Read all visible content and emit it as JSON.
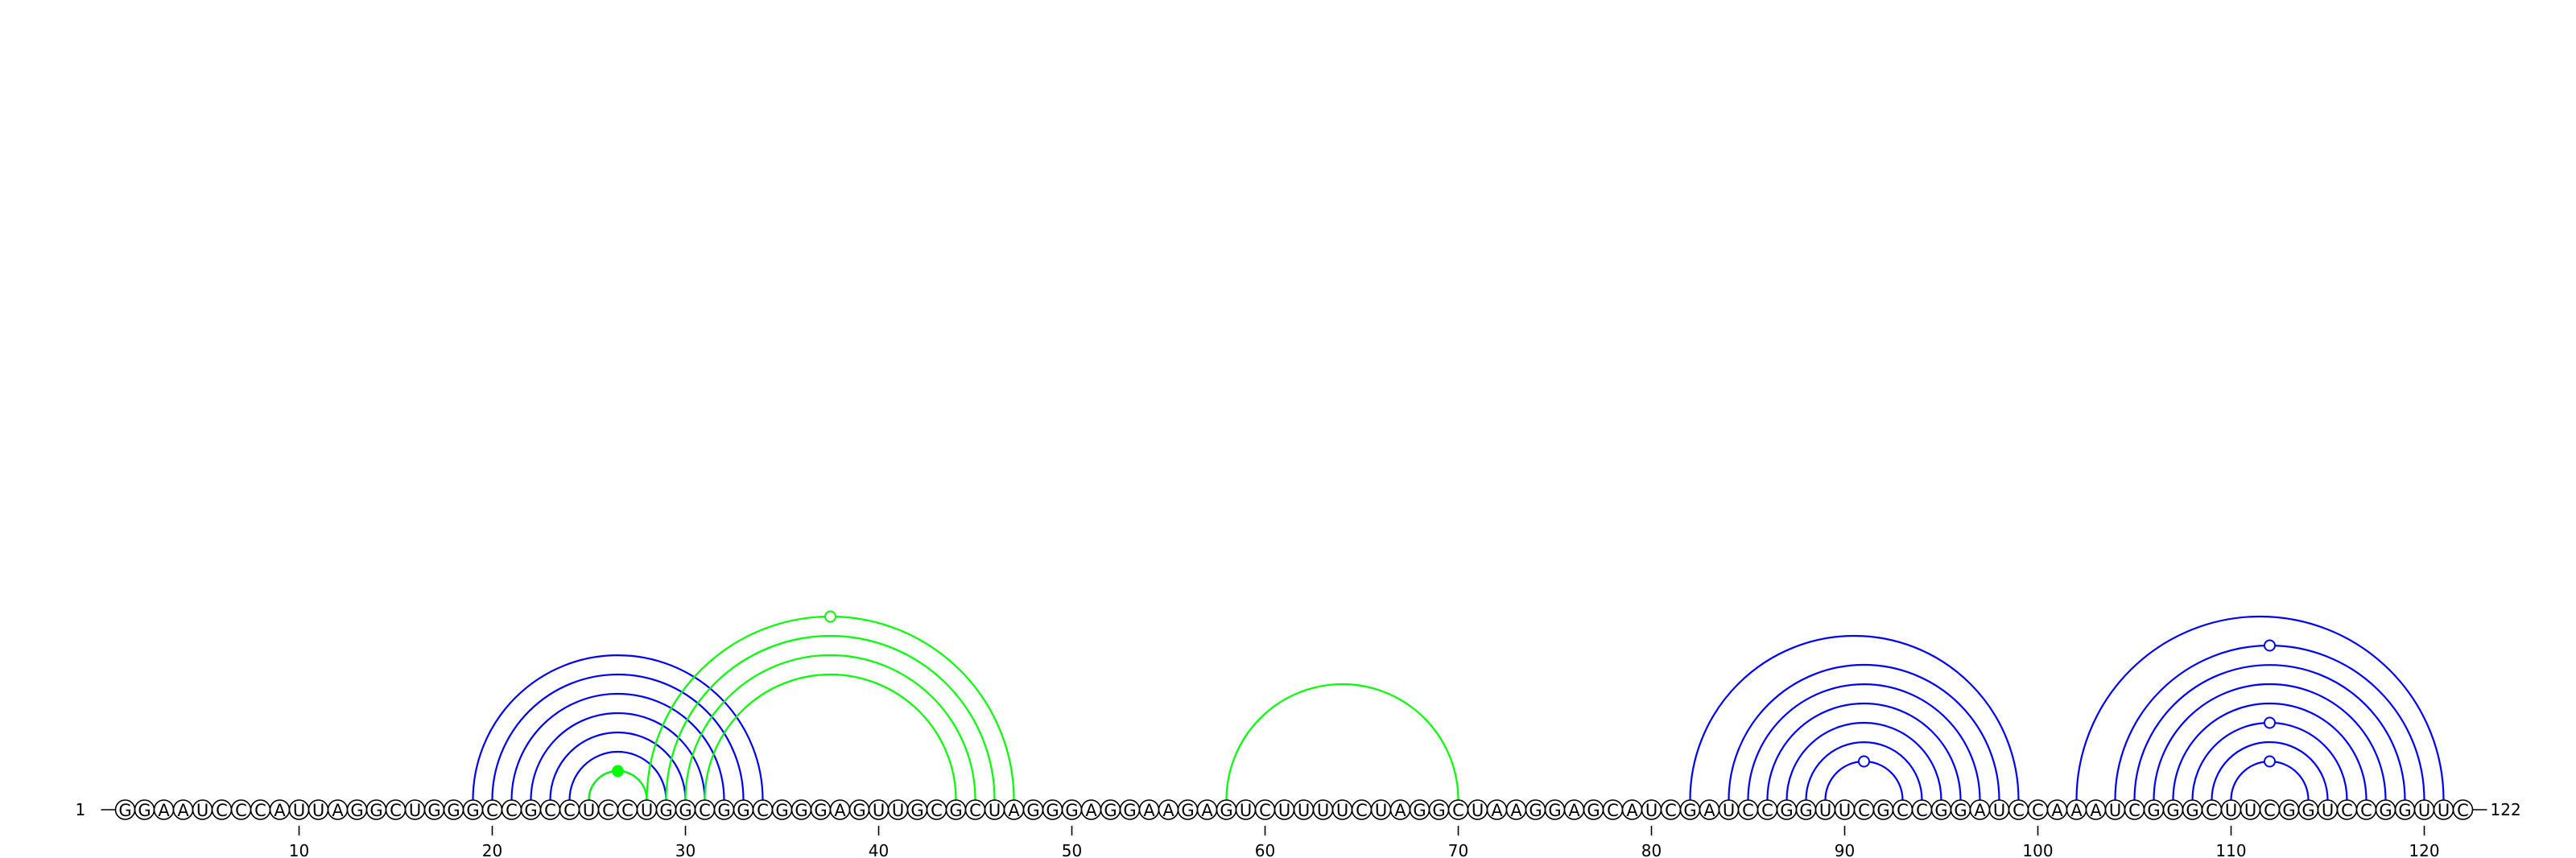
{
  "sequence": "GGAAUCCCAUUAGGCUGGGCCGCCUCCUGGCGGCGGGAGUUGCGCUAGGGAGGAAGAGUCUUUUCUAGGCUAAGGAGCAUCGAUCCGGUUCGCCGGAUCCAAAUCGGGCUUCGGUCCGGUUC",
  "start_label": "1",
  "end_label": "122",
  "ticks": [
    10,
    20,
    30,
    40,
    50,
    60,
    70,
    80,
    90,
    100,
    110,
    120
  ],
  "colors": {
    "primary": "#0000ff",
    "alternative": "#00ff00",
    "outline": "#000000",
    "background": "#ffffff"
  },
  "helices": [
    {
      "color": "primary",
      "pairs": [
        [
          19,
          34
        ],
        [
          20,
          33
        ],
        [
          21,
          32
        ],
        [
          22,
          31
        ],
        [
          23,
          30
        ],
        [
          24,
          29
        ],
        [
          25,
          28
        ]
      ]
    },
    {
      "color": "alternative",
      "pairs": [
        [
          25,
          28
        ]
      ],
      "marker": "filled"
    },
    {
      "color": "alternative",
      "pairs": [
        [
          28,
          47
        ],
        [
          29,
          46
        ]
      ],
      "marker": "open"
    },
    {
      "color": "alternative",
      "pairs": [
        [
          30,
          45
        ],
        [
          31,
          44
        ]
      ]
    },
    {
      "color": "alternative",
      "pairs": [
        [
          58,
          70
        ]
      ]
    },
    {
      "color": "primary",
      "pairs": [
        [
          82,
          99
        ],
        [
          84,
          98
        ],
        [
          85,
          97
        ],
        [
          86,
          96
        ],
        [
          87,
          95
        ],
        [
          88,
          94
        ],
        [
          89,
          93
        ]
      ],
      "marker": "open-inner"
    },
    {
      "color": "primary",
      "pairs": [
        [
          102,
          121
        ],
        [
          104,
          120
        ],
        [
          105,
          119
        ],
        [
          106,
          118
        ],
        [
          107,
          117
        ],
        [
          108,
          116
        ],
        [
          109,
          115
        ],
        [
          110,
          114
        ]
      ],
      "marker": "open-multi"
    }
  ]
}
